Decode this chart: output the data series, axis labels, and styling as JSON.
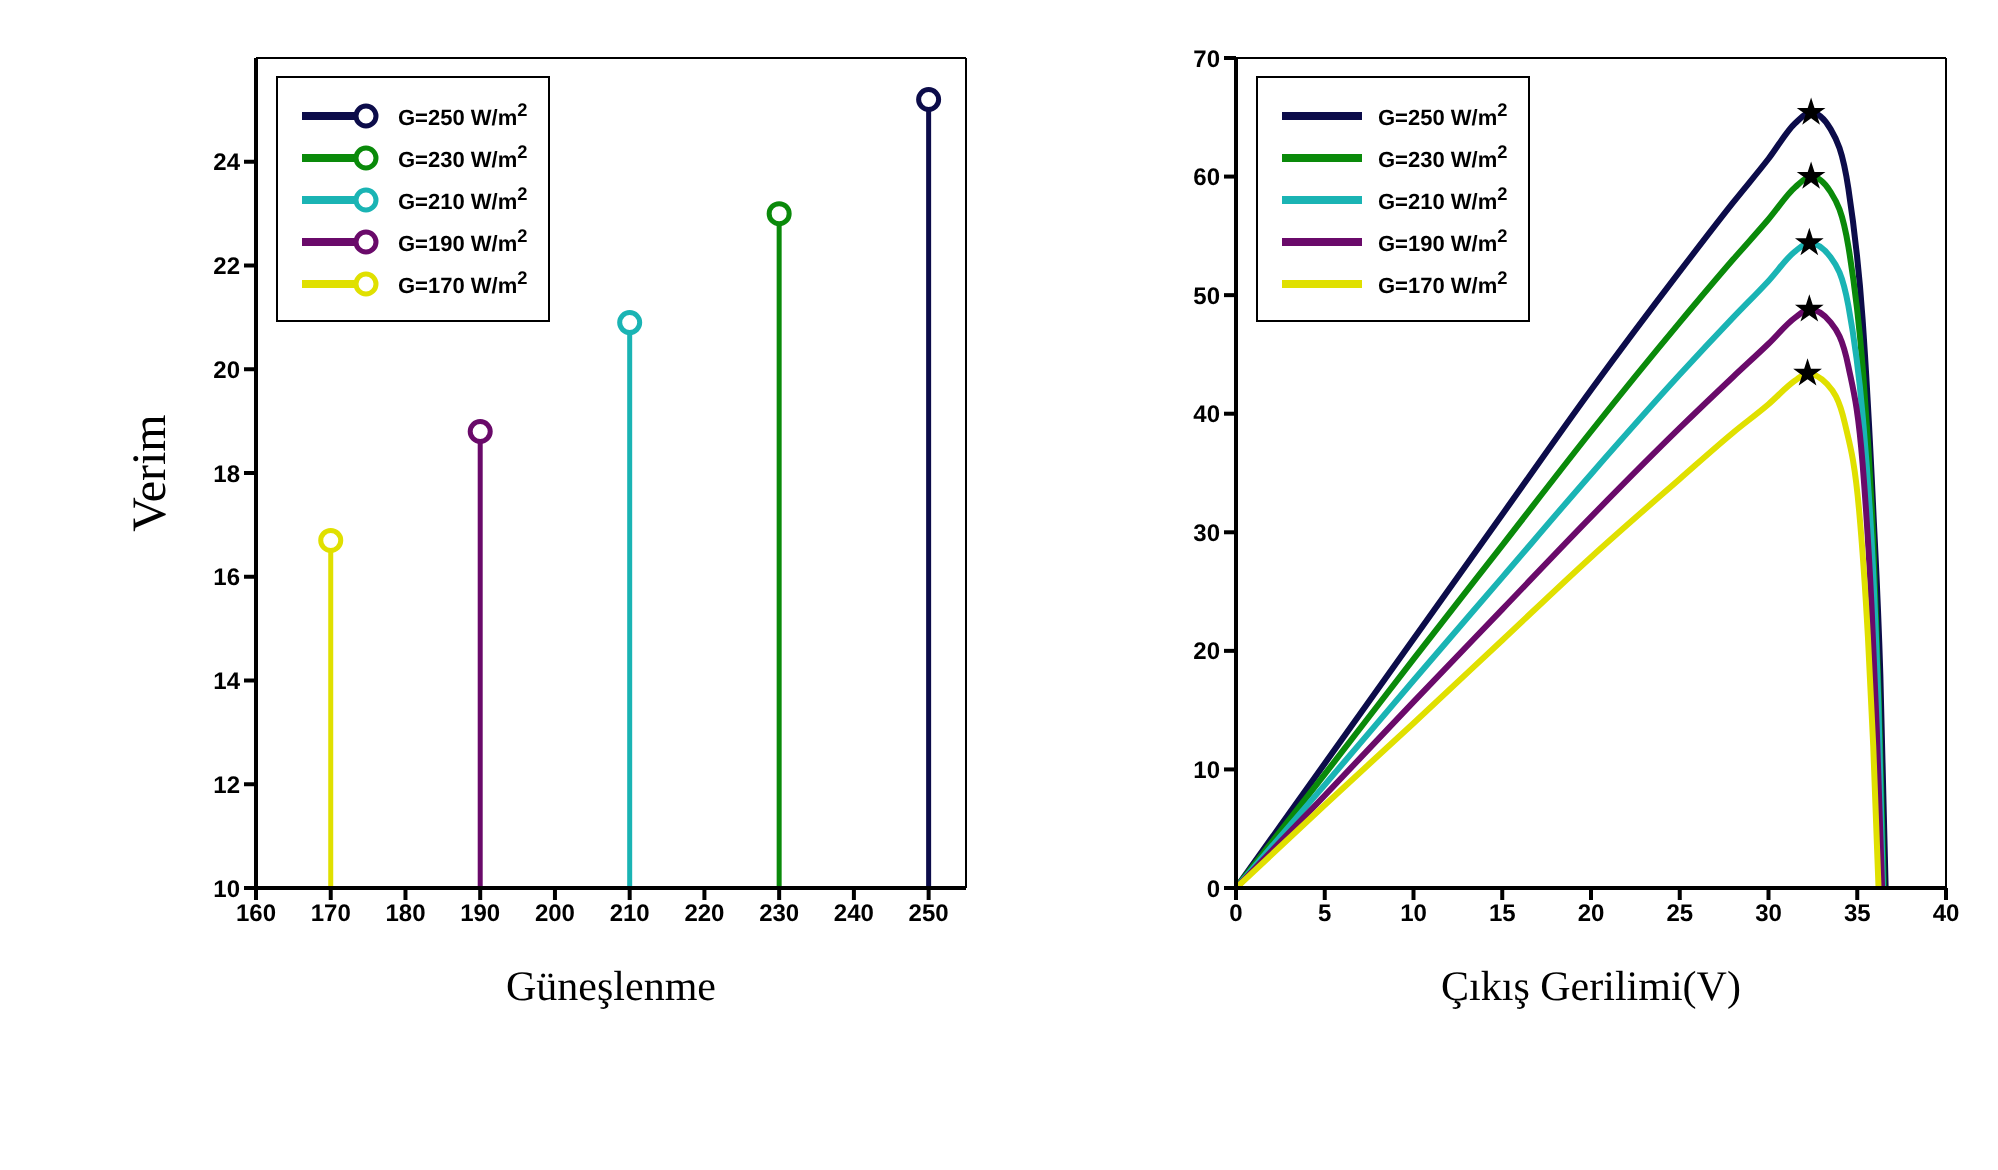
{
  "chart_data": [
    {
      "type": "lollipop",
      "xlabel": "Güneşlenme",
      "ylabel": "Verim",
      "xlim": [
        160,
        255
      ],
      "xticks": [
        160,
        170,
        180,
        190,
        200,
        210,
        220,
        230,
        240,
        250
      ],
      "ylim": [
        10,
        26
      ],
      "yticks": [
        10,
        12,
        14,
        16,
        18,
        20,
        22,
        24
      ],
      "legend": "top left",
      "marker": "circle",
      "series": [
        {
          "name": "G=250 W/m$^{2}$",
          "color": "#0c0c4a",
          "x": [
            250
          ],
          "values": [
            25.2
          ]
        },
        {
          "name": "G=230 W/m$^{2}$",
          "color": "#0a8a0a",
          "x": [
            230
          ],
          "values": [
            23.0
          ]
        },
        {
          "name": "G=210 W/m$^{2}$",
          "color": "#1ab4b4",
          "x": [
            210
          ],
          "values": [
            20.9
          ]
        },
        {
          "name": "G=190 W/m$^{2}$",
          "color": "#6a0a6a",
          "x": [
            190
          ],
          "values": [
            18.8
          ]
        },
        {
          "name": "G=170 W/m$^{2}$",
          "color": "#e0e000",
          "x": [
            170
          ],
          "values": [
            16.7
          ]
        }
      ]
    },
    {
      "type": "line",
      "xlabel": "Çıkış Gerilimi(V)",
      "xlim": [
        0,
        40
      ],
      "xticks": [
        0,
        5,
        10,
        15,
        20,
        25,
        30,
        35,
        40
      ],
      "ylim": [
        0,
        70
      ],
      "yticks": [
        0,
        10,
        20,
        30,
        40,
        50,
        60,
        70
      ],
      "legend": "top left",
      "marker": "none",
      "series": [
        {
          "name": "G=250 W/m$^{2}$",
          "color": "#0c0c4a",
          "x": [
            0,
            5,
            10,
            15,
            20,
            25,
            28,
            30,
            31.5,
            32.4,
            33.5,
            34.5,
            35.3,
            35.9,
            36.3,
            36.6
          ],
          "values": [
            0,
            10.5,
            21,
            31.5,
            42,
            52,
            57.8,
            61.5,
            64.5,
            65.4,
            64,
            59,
            48,
            32,
            18,
            0
          ]
        },
        {
          "name": "G=230 W/m$^{2}$",
          "color": "#0a8a0a",
          "x": [
            0,
            5,
            10,
            15,
            20,
            25,
            28,
            30,
            31.5,
            32.4,
            33.5,
            34.5,
            35.3,
            35.9,
            36.2,
            36.5
          ],
          "values": [
            0,
            9.6,
            19.3,
            28.9,
            38.5,
            47.7,
            53,
            56.4,
            59.1,
            60,
            58.7,
            54.1,
            44,
            29.3,
            16.5,
            0
          ]
        },
        {
          "name": "G=210 W/m$^{2}$",
          "color": "#1ab4b4",
          "x": [
            0,
            5,
            10,
            15,
            20,
            25,
            28,
            30,
            31.5,
            32.3,
            33.5,
            34.5,
            35.3,
            35.9,
            36.2,
            36.45
          ],
          "values": [
            0,
            8.7,
            17.5,
            26.2,
            34.9,
            43.3,
            48.1,
            51.2,
            53.7,
            54.4,
            53.2,
            49.1,
            39.9,
            26.6,
            15,
            0
          ]
        },
        {
          "name": "G=190 W/m$^{2}$",
          "color": "#6a0a6a",
          "x": [
            0,
            5,
            10,
            15,
            20,
            25,
            28,
            30,
            31.5,
            32.3,
            33.5,
            34.5,
            35.3,
            35.8,
            36.1,
            36.4
          ],
          "values": [
            0,
            7.8,
            15.7,
            23.5,
            31.3,
            38.8,
            43.1,
            45.9,
            48.1,
            48.8,
            47.7,
            44,
            35.8,
            23.9,
            13.4,
            0
          ]
        },
        {
          "name": "G=170 W/m$^{2}$",
          "color": "#e0e000",
          "x": [
            0,
            5,
            10,
            15,
            20,
            25,
            28,
            30,
            31.5,
            32.2,
            33.3,
            34.3,
            35.1,
            35.6,
            35.9,
            36.2
          ],
          "values": [
            0,
            7,
            13.9,
            20.9,
            27.9,
            34.5,
            38.4,
            40.8,
            42.8,
            43.4,
            42.5,
            39.2,
            31.9,
            21.2,
            12,
            0
          ]
        },
        {
          "type": "scatter",
          "marker": "star",
          "color": "#000000",
          "x": [
            32.4,
            32.4,
            32.3,
            32.3,
            32.2
          ],
          "values": [
            65.4,
            60,
            54.4,
            48.8,
            43.4
          ]
        }
      ]
    }
  ]
}
